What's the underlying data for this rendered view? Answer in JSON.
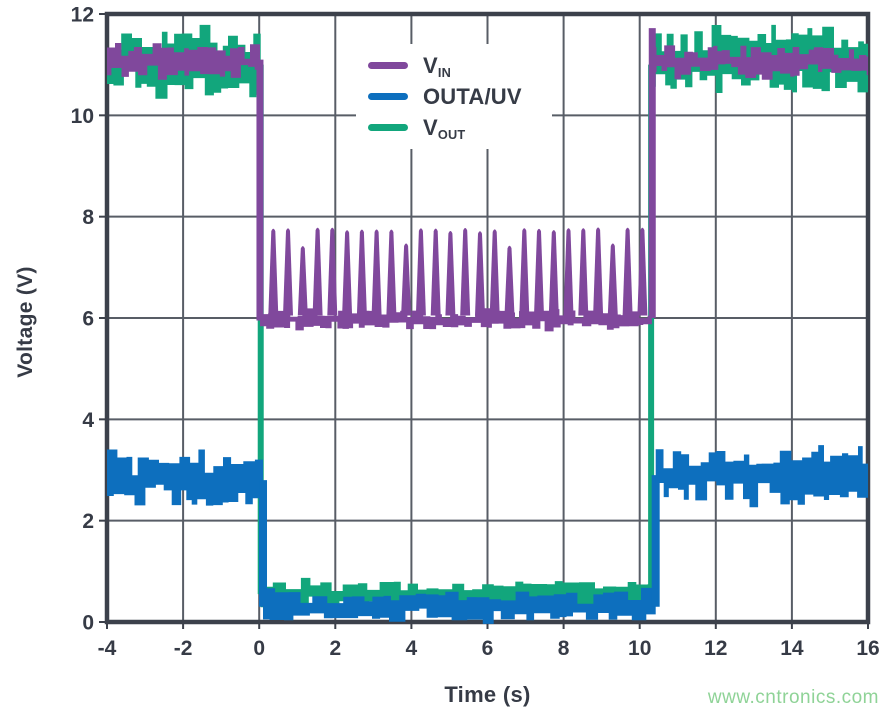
{
  "figure": {
    "background": "#ffffff"
  },
  "watermark": {
    "text": "www.cntronics.com",
    "color": "#8fd397"
  },
  "chart_data": {
    "type": "line",
    "title": "",
    "xlabel": "Time (s)",
    "ylabel": "Voltage (V)",
    "xlim": [
      -4,
      16
    ],
    "ylim": [
      0,
      12
    ],
    "xticks": [
      -4,
      -2,
      0,
      2,
      4,
      6,
      8,
      10,
      12,
      14,
      16
    ],
    "yticks": [
      0,
      2,
      4,
      6,
      8,
      10,
      12
    ],
    "grid": true,
    "grid_color": "#585d66",
    "axis_color": "#3c414b",
    "tick_label_color": "#363b46",
    "legend": {
      "position": "top-center",
      "entries": [
        {
          "main": "V",
          "sub": "IN",
          "series": "V_IN"
        },
        {
          "main": "OUTA/UV",
          "sub": "",
          "series": "OUTA/UV"
        },
        {
          "main": "V",
          "sub": "OUT",
          "series": "V_OUT"
        }
      ]
    },
    "series": [
      {
        "name": "V_OUT",
        "color": "#12a67c",
        "z": 0,
        "description": "Noisy band ~10.45-11.62 V before t=0 and after t=10.3 s; drops to ~0.3-0.8 V band during 0 to 10.3 s",
        "segments": [
          {
            "kind": "band",
            "t": [
              -4,
              0.04
            ],
            "lo": 10.44,
            "hi": 11.62,
            "step": 0.22
          },
          {
            "kind": "vline",
            "at": 0.04,
            "from": 11.0,
            "to": 0.55,
            "w": 6
          },
          {
            "kind": "band",
            "t": [
              0.04,
              10.3
            ],
            "lo": 0.3,
            "hi": 0.8,
            "step": 0.3
          },
          {
            "kind": "vline",
            "at": 10.3,
            "from": 0.6,
            "to": 11.0,
            "w": 6
          },
          {
            "kind": "band",
            "t": [
              10.3,
              16
            ],
            "lo": 10.44,
            "hi": 11.62,
            "step": 0.22
          }
        ]
      },
      {
        "name": "V_IN",
        "color": "#80489c",
        "z": 1,
        "description": "Noisy band ~10.78-11.35 V; steps to ~6 V at t=0 with spikes to ~7.8 V every ~0.39 s; returns at t=10.3 s with overshoot to ~11.7 V",
        "segments": [
          {
            "kind": "band",
            "t": [
              -4,
              0.02
            ],
            "lo": 10.78,
            "hi": 11.35,
            "step": 0.2
          },
          {
            "kind": "vline",
            "at": 0.02,
            "from": 11.1,
            "to": 5.95,
            "w": 7
          },
          {
            "kind": "band",
            "t": [
              0.02,
              10.32
            ],
            "lo": 5.78,
            "hi": 6.15,
            "step": 0.18
          },
          {
            "kind": "pulses",
            "t": [
              0.05,
              10.3
            ],
            "first": 0.37,
            "period": 0.388,
            "base": 6.05,
            "peak": 7.8,
            "peak_jitter": 0.3,
            "top_w": 4,
            "base_w": 10
          },
          {
            "kind": "vline",
            "at": 10.33,
            "from": 6.0,
            "to": 11.72,
            "w": 7
          },
          {
            "kind": "band",
            "t": [
              10.33,
              16
            ],
            "lo": 10.78,
            "hi": 11.35,
            "step": 0.2
          }
        ]
      },
      {
        "name": "OUTA/UV",
        "color": "#0d6fbe",
        "z": 2,
        "description": "Band ~2.3-3.3 V before t=0; ~0-0.6 V during 0.1 to 10.4 s; ~2.4-3.4 V after",
        "segments": [
          {
            "kind": "band",
            "t": [
              -4,
              0.1
            ],
            "lo": 2.3,
            "hi": 3.27,
            "step": 0.22
          },
          {
            "kind": "vline",
            "at": 0.1,
            "from": 2.8,
            "to": 0.3,
            "w": 8
          },
          {
            "kind": "band",
            "t": [
              0.1,
              10.42
            ],
            "lo": 0.03,
            "hi": 0.6,
            "step": 0.3
          },
          {
            "kind": "vline",
            "at": 10.42,
            "from": 0.3,
            "to": 2.9,
            "w": 8
          },
          {
            "kind": "band",
            "t": [
              10.42,
              16
            ],
            "lo": 2.4,
            "hi": 3.38,
            "step": 0.22
          }
        ]
      }
    ]
  }
}
